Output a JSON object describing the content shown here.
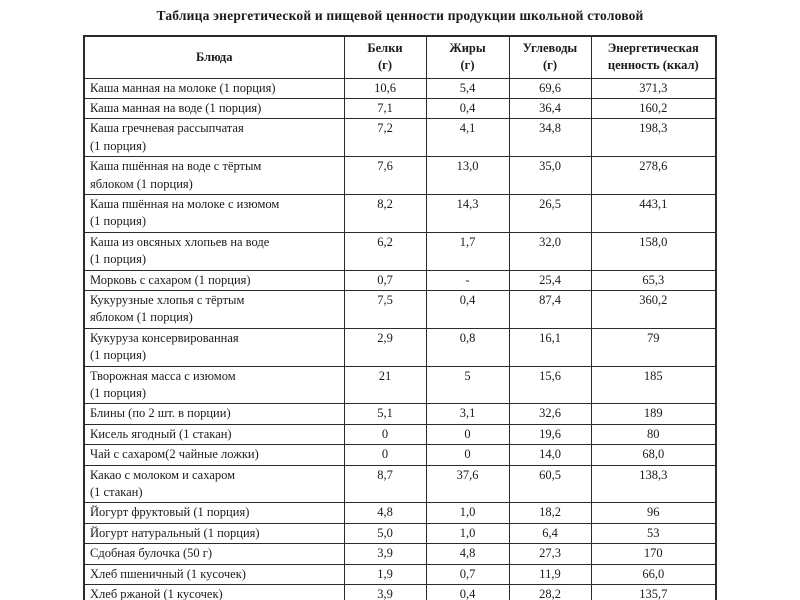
{
  "page": {
    "title": "Таблица энергетической и пищевой ценности продукции школьной столовой"
  },
  "table": {
    "headers": [
      "Блюда",
      "Белки\n(г)",
      "Жиры\n(г)",
      "Углеводы\n(г)",
      "Энергетическая\nценность (ккал)"
    ],
    "rows": [
      {
        "dish": "Каша манная на молоке (1 порция)",
        "protein": "10,6",
        "fat": "5,4",
        "carbs": "69,6",
        "energy": "371,3"
      },
      {
        "dish": "Каша манная на воде (1 порция)",
        "protein": "7,1",
        "fat": "0,4",
        "carbs": "36,4",
        "energy": "160,2"
      },
      {
        "dish": "Каша гречневая рассыпчатая\n(1 порция)",
        "protein": "7,2",
        "fat": "4,1",
        "carbs": "34,8",
        "energy": "198,3"
      },
      {
        "dish": "Каша пшённая на воде с тёртым\nяблоком (1 порция)",
        "protein": "7,6",
        "fat": "13,0",
        "carbs": "35,0",
        "energy": "278,6"
      },
      {
        "dish": "Каша пшённая на молоке с изюмом\n(1 порция)",
        "protein": "8,2",
        "fat": "14,3",
        "carbs": "26,5",
        "energy": "443,1"
      },
      {
        "dish": "Каша из овсяных хлопьев на воде\n(1 порция)",
        "protein": "6,2",
        "fat": "1,7",
        "carbs": "32,0",
        "energy": "158,0"
      },
      {
        "dish": "Морковь с сахаром (1 порция)",
        "protein": "0,7",
        "fat": "-",
        "carbs": "25,4",
        "energy": "65,3"
      },
      {
        "dish": "Кукурузные хлопья с тёртым\nяблоком (1 порция)",
        "protein": "7,5",
        "fat": "0,4",
        "carbs": "87,4",
        "energy": "360,2"
      },
      {
        "dish": "Кукуруза консервированная\n(1 порция)",
        "protein": "2,9",
        "fat": "0,8",
        "carbs": "16,1",
        "energy": "79"
      },
      {
        "dish": "Творожная масса с изюмом\n(1 порция)",
        "protein": "21",
        "fat": "5",
        "carbs": "15,6",
        "energy": "185"
      },
      {
        "dish": "Блины (по 2 шт. в порции)",
        "protein": "5,1",
        "fat": "3,1",
        "carbs": "32,6",
        "energy": "189"
      },
      {
        "dish": "Кисель ягодный (1 стакан)",
        "protein": "0",
        "fat": "0",
        "carbs": "19,6",
        "energy": "80"
      },
      {
        "dish": "Чай с сахаром(2 чайные ложки)",
        "protein": "0",
        "fat": "0",
        "carbs": "14,0",
        "energy": "68,0"
      },
      {
        "dish": "Какао с молоком и сахаром\n(1 стакан)",
        "protein": "8,7",
        "fat": "37,6",
        "carbs": "60,5",
        "energy": "138,3"
      },
      {
        "dish": "Йогурт фруктовый (1 порция)",
        "protein": "4,8",
        "fat": "1,0",
        "carbs": "18,2",
        "energy": "96"
      },
      {
        "dish": "Йогурт натуральный (1 порция)",
        "protein": "5,0",
        "fat": "1,0",
        "carbs": "6,4",
        "energy": "53"
      },
      {
        "dish": "Сдобная булочка (50 г)",
        "protein": "3,9",
        "fat": "4,8",
        "carbs": "27,3",
        "energy": "170"
      },
      {
        "dish": "Хлеб пшеничный (1 кусочек)",
        "protein": "1,9",
        "fat": "0,7",
        "carbs": "11,9",
        "energy": "66,0"
      },
      {
        "dish": "Хлеб ржаной (1 кусочек)",
        "protein": "3,9",
        "fat": "0,4",
        "carbs": "28,2",
        "energy": "135,7"
      }
    ]
  }
}
